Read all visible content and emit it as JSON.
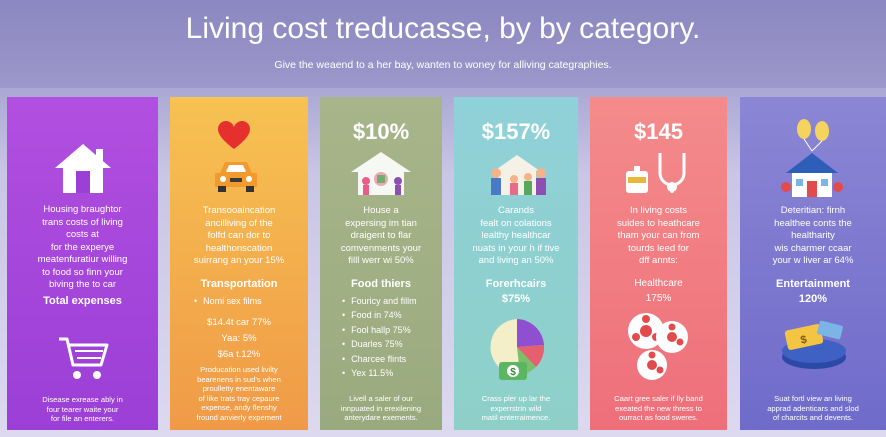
{
  "header": {
    "title": "Living cost treducasse, by by category.",
    "subtitle": "Give the weaend to a her bay, wanten to woney for alliving categraphies."
  },
  "cards": [
    {
      "desc": [
        "Housing braughtor",
        "trans costs of living",
        "costs at",
        "for the experye",
        "meatenfuratiur willing",
        "to food so finn your",
        "biving the to car"
      ],
      "head": "Total expenses",
      "foot": [
        "Disease exrease ably in",
        "four tearer waite your",
        "for file an enterers."
      ],
      "icons": [
        "house-icon",
        "shopping-cart-icon"
      ]
    },
    {
      "desc": [
        "Transooaincation",
        "ancilliving of the",
        "folfd can dor to",
        "healthonscation",
        "suirrang an your 15%"
      ],
      "head": "Transportation",
      "list": [
        "Nomi sex films"
      ],
      "lines": [
        "$14.4t car 77%",
        "Yaa: 5%",
        "$6a t.12%"
      ],
      "foot": [
        "Producation used livilty",
        "bearenens in sud's when",
        "proulletty enentaware",
        "of like trats tray cepaure",
        "expense, andy flenshy",
        "fround anvierly expement"
      ],
      "icons": [
        "heart-icon",
        "car-icon"
      ]
    },
    {
      "value": "$10%",
      "desc": [
        "House a",
        "expersing im tian",
        "draigent to flar",
        "comvenments your",
        "filll werr wi 50%"
      ],
      "head": "Food thiers",
      "list": [
        "Fouricy and fillm",
        "Food in 74%",
        "Fool hallp 75%",
        "Duarles 75%",
        "Charcee flints",
        "Yex 11.5%"
      ],
      "foot": [
        "Livell a saler of our",
        "innpuated in erexilening",
        "anterydare exements."
      ],
      "icons": [
        "family-house-icon"
      ]
    },
    {
      "value": "$157%",
      "desc": [
        "Carands",
        "fealt on colations",
        "lealthy healthcar",
        "nuats in your h if tive",
        "and living an 50%"
      ],
      "head": "Forerhcairs",
      "sub": "$75%",
      "foot": [
        "Crass pler up lar the",
        "experrstrin wild",
        "matil enterraimence."
      ],
      "icons": [
        "people-group-icon",
        "pie-chart-icon",
        "money-icon"
      ]
    },
    {
      "value": "$145",
      "desc": [
        "In living costs",
        "suides to heathcare",
        "tham your can from",
        "tourds leed for",
        "dff annts:"
      ],
      "head": "Healthcare",
      "sub": "175%",
      "foot": [
        "Caart gree saler if lly band",
        "exeated the new thress to",
        "ourract as food sweres."
      ],
      "icons": [
        "stethoscope-icon",
        "film-reel-icon"
      ]
    },
    {
      "desc": [
        "Deteritian: firnh",
        "healthee conts the",
        "healtharity",
        "wis charmer ccaar",
        "your w liver ar 64%"
      ],
      "head": "Entertainment",
      "sub": "120%",
      "foot": [
        "Suat fortl view an living",
        "apprad adenticars and slod",
        "of charcits and devents."
      ],
      "icons": [
        "balloons-icon",
        "house-icon",
        "ticket-icon"
      ]
    }
  ],
  "colors": {
    "header": "#8f8bc3",
    "housing": "#a646de",
    "transportation": "#f4b04c",
    "food": "#a2b086",
    "forerhcairs": "#8fd1d0",
    "healthcare": "#f17c83",
    "entertainment": "#7d78cf"
  }
}
